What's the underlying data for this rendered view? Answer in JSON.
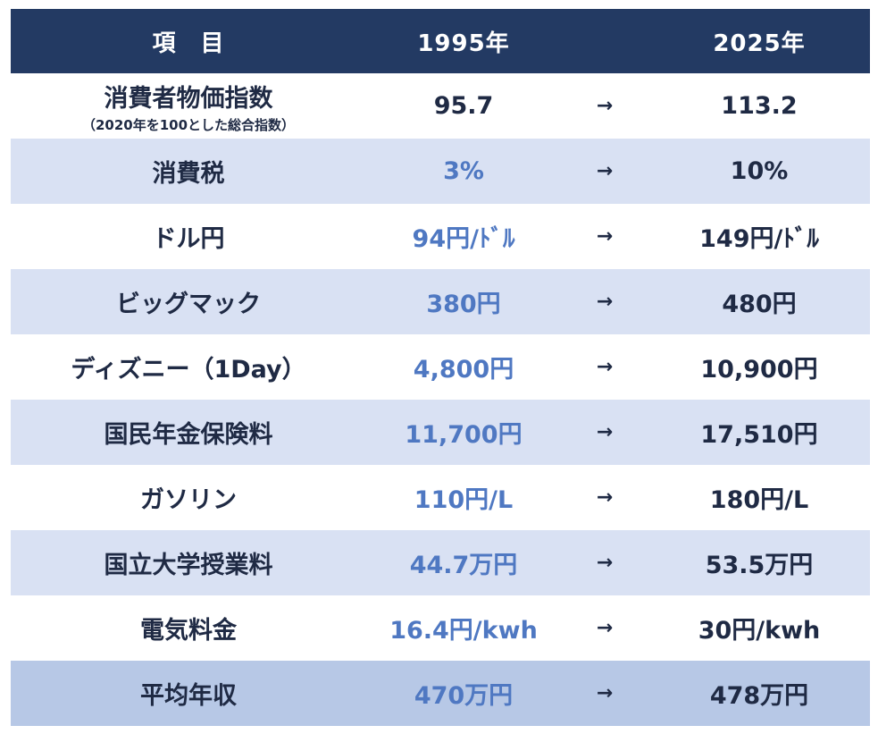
{
  "header": {
    "item": "項　目",
    "year_old": "1995年",
    "year_new": "2025年"
  },
  "rows": [
    {
      "label": "消費者物価指数",
      "sublabel": "（2020年を100とした総合指数）",
      "old": "95.7",
      "arrow": "→",
      "new": "113.2"
    },
    {
      "label": "消費税",
      "old": "3%",
      "arrow": "→",
      "new": "10%"
    },
    {
      "label": "ドル円",
      "old": "94円/ﾄﾞﾙ",
      "arrow": "→",
      "new": "149円/ﾄﾞﾙ"
    },
    {
      "label": "ビッグマック",
      "old": "380円",
      "arrow": "→",
      "new": "480円"
    },
    {
      "label": "ディズニー（1Day）",
      "old": "4,800円",
      "arrow": "→",
      "new": "10,900円"
    },
    {
      "label": "国民年金保険料",
      "old": "11,700円",
      "arrow": "→",
      "new": "17,510円"
    },
    {
      "label": "ガソリン",
      "old": "110円/L",
      "arrow": "→",
      "new": "180円/L"
    },
    {
      "label": "国立大学授業料",
      "old": "44.7万円",
      "arrow": "→",
      "new": "53.5万円"
    },
    {
      "label": "電気料金",
      "old": "16.4円/kwh",
      "arrow": "→",
      "new": "30円/kwh"
    },
    {
      "label": "平均年収",
      "old": "470万円",
      "arrow": "→",
      "new": "478万円"
    }
  ],
  "colors": {
    "header_bg": "#233a63",
    "row_alt_bg": "#d9e1f3",
    "last_row_bg": "#b7c8e6",
    "old_value_text": "#4f78c2",
    "text": "#1f2a44"
  }
}
